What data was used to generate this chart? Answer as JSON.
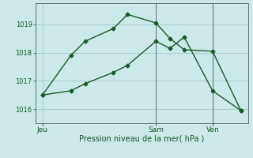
{
  "background_color": "#cce8e8",
  "grid_color": "#aacccc",
  "line_color": "#1a5c28",
  "x_ticks_labels": [
    "Jeu",
    "Sam",
    "Ven"
  ],
  "x_ticks_pos": [
    0,
    8,
    12
  ],
  "xlabel": "Pression niveau de la mer( hPa )",
  "ylim": [
    1015.5,
    1019.75
  ],
  "yticks": [
    1016,
    1017,
    1018,
    1019
  ],
  "line1_x": [
    0,
    2,
    3,
    5,
    6,
    8,
    9,
    10,
    12,
    14
  ],
  "line1_y": [
    1016.5,
    1017.9,
    1018.4,
    1018.85,
    1019.35,
    1019.05,
    1018.5,
    1018.1,
    1018.05,
    1015.95
  ],
  "line2_x": [
    0,
    2,
    3,
    5,
    6,
    8,
    9,
    10,
    12,
    14
  ],
  "line2_y": [
    1016.5,
    1016.65,
    1016.9,
    1017.3,
    1017.55,
    1018.4,
    1018.15,
    1018.55,
    1016.65,
    1015.95
  ],
  "vline_x": [
    8,
    12
  ],
  "figsize": [
    3.2,
    2.0
  ],
  "dpi": 100
}
